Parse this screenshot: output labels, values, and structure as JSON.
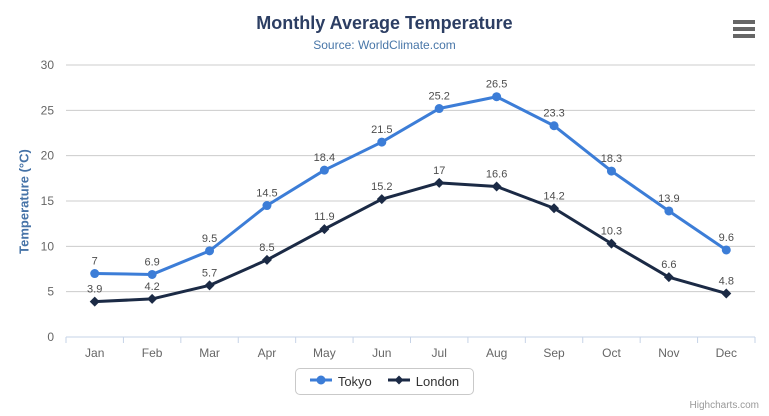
{
  "chart": {
    "credits": "Highcharts.com",
    "menu_tooltip": "Chart context menu"
  },
  "chart_data": {
    "type": "line",
    "title": "Monthly Average Temperature",
    "subtitle": "Source: WorldClimate.com",
    "xlabel": "",
    "ylabel": "Temperature (°C)",
    "categories": [
      "Jan",
      "Feb",
      "Mar",
      "Apr",
      "May",
      "Jun",
      "Jul",
      "Aug",
      "Sep",
      "Oct",
      "Nov",
      "Dec"
    ],
    "series": [
      {
        "name": "Tokyo",
        "marker": "circle",
        "color": "#3c7dd7",
        "values": [
          7,
          6.9,
          9.5,
          14.5,
          18.4,
          21.5,
          25.2,
          26.5,
          23.3,
          18.3,
          13.9,
          9.6
        ]
      },
      {
        "name": "London",
        "marker": "diamond",
        "color": "#1b2a45",
        "values": [
          3.9,
          4.2,
          5.7,
          8.5,
          11.9,
          15.2,
          17,
          16.6,
          14.2,
          10.3,
          6.6,
          4.8
        ]
      }
    ],
    "ylim": [
      0,
      30
    ],
    "ytick": 5,
    "grid": true,
    "legend_position": "bottom",
    "style": {
      "title_color": "#2c3e63",
      "subtitle_color": "#4876a8",
      "axis_title_color": "#4673a7",
      "axis_label_color": "#666666",
      "grid_color": "#cccccc",
      "axis_line_color": "#c6d3e7",
      "data_label_color": "#4d4d4d",
      "legend_border_color": "#c9c9c9",
      "legend_text_color": "#333333",
      "credits_color": "#999999",
      "menu_icon_color": "#666666"
    }
  }
}
